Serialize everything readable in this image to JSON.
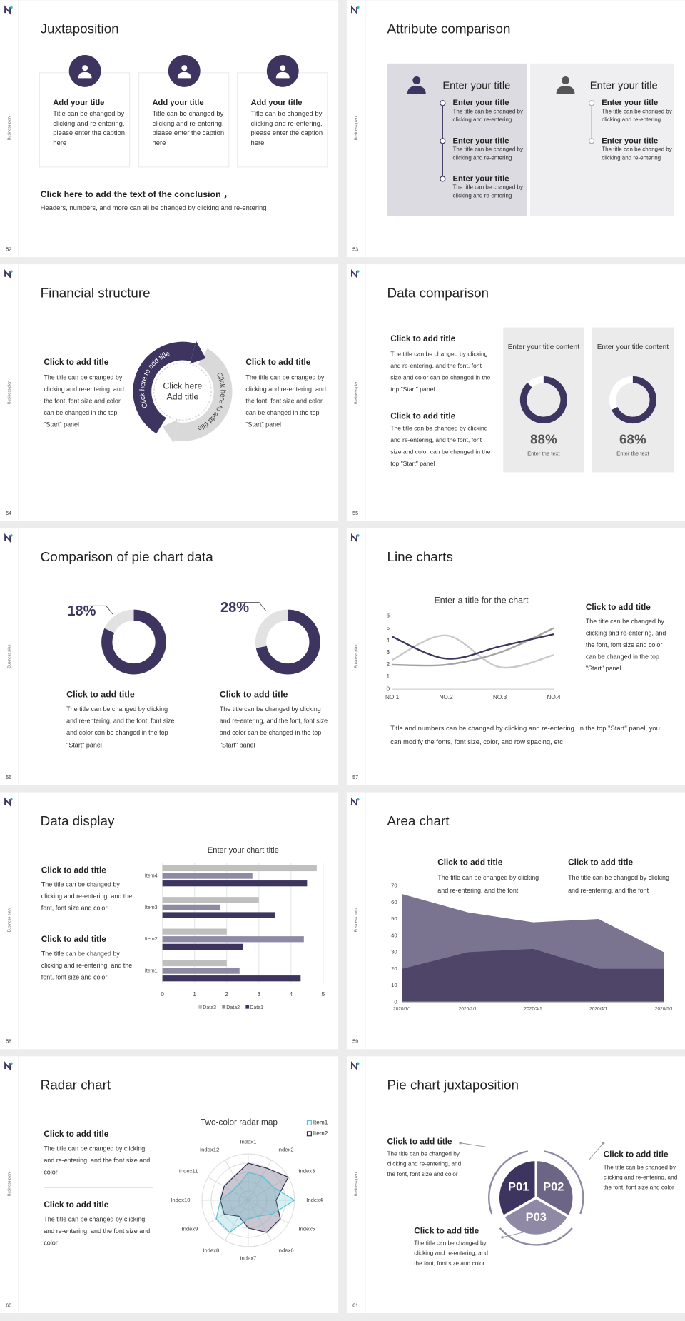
{
  "slides": [
    {
      "page": "52",
      "side_label": "Business plan",
      "title": "Juxtaposition",
      "cards": [
        {
          "title": "Add your title",
          "text": "Title can be changed by clicking and re-entering, please enter the caption here"
        },
        {
          "title": "Add your title",
          "text": "Title can be changed by clicking and re-entering, please enter the caption here"
        },
        {
          "title": "Add your title",
          "text": "Title can be changed by clicking and re-entering, please enter the caption here"
        }
      ],
      "conclusion": {
        "title": "Click here to add the text of the conclusion ，",
        "text": "Headers, numbers, and more can all be changed by clicking and re-entering"
      }
    },
    {
      "page": "53",
      "side_label": "Business plan",
      "title": "Attribute comparison",
      "panels": [
        {
          "title": "Enter your title",
          "items": [
            {
              "title": "Enter your title",
              "text": "The title can be changed by clicking and re-entering"
            },
            {
              "title": "Enter your title",
              "text": "The title can be changed by clicking and re-entering"
            },
            {
              "title": "Enter your title",
              "text": "The title can be changed by clicking and re-entering"
            }
          ]
        },
        {
          "title": "Enter your title",
          "items": [
            {
              "title": "Enter your title",
              "text": "The title can be changed by clicking and re-entering"
            },
            {
              "title": "Enter your title",
              "text": "The title can be changed by clicking and re-entering"
            }
          ]
        }
      ]
    },
    {
      "page": "54",
      "side_label": "Business plan",
      "title": "Financial structure",
      "texts": [
        {
          "title": "Click to add title",
          "text": "The title can be changed by clicking and re-entering, and the font, font size and color can be changed in the top \"Start\" panel"
        },
        {
          "title": "Click to add title",
          "text": "The title can be changed by clicking and re-entering, and the font, font size and color can be changed in the top \"Start\" panel"
        }
      ],
      "cycle": {
        "arc_left": "Click here to add title",
        "arc_right": "Click here to add title",
        "center": [
          "Click here",
          "Add title"
        ]
      }
    },
    {
      "page": "55",
      "side_label": "Business plan",
      "title": "Data comparison",
      "texts": [
        {
          "title": "Click to add title",
          "text": "The title can be changed by clicking and re-entering, and the font, font size and color can be changed in the top \"Start\" panel"
        },
        {
          "title": "Click to add title",
          "text": "The title can be changed by clicking and re-entering, and the font, font size and color can be changed in the top \"Start\" panel"
        }
      ],
      "cards": [
        {
          "title": "Enter your title content",
          "value": 88,
          "value_label": "88%",
          "caption": "Enter the text"
        },
        {
          "title": "Enter your title content",
          "value": 68,
          "value_label": "68%",
          "caption": "Enter the text"
        }
      ]
    },
    {
      "page": "56",
      "side_label": "Business plan",
      "title": "Comparison of pie chart data",
      "donuts": [
        {
          "value": 18,
          "value_label": "18%",
          "title": "Click to add title",
          "text": "The title can be changed by clicking and re-entering, and the font, font size and color can be changed in the top \"Start\" panel"
        },
        {
          "value": 28,
          "value_label": "28%",
          "title": "Click to add title",
          "text": "The title can be changed by clicking and re-entering, and the font, font size and color can be changed in the top \"Start\" panel"
        }
      ]
    },
    {
      "page": "57",
      "side_label": "Business plan",
      "title": "Line charts",
      "chart": {
        "type": "line",
        "title": "Enter a title for the chart",
        "categories": [
          "NO.1",
          "NO.2",
          "NO.3",
          "NO.4"
        ],
        "series": [
          {
            "color": "#3d3560",
            "values": [
              4.3,
              2.5,
              3.5,
              4.5
            ]
          },
          {
            "color": "#c9c9c9",
            "values": [
              2.4,
              4.4,
              1.8,
              2.8
            ]
          },
          {
            "color": "#a3a3a3",
            "values": [
              2,
              2,
              3,
              5
            ]
          }
        ],
        "ylim": [
          0,
          6
        ],
        "yticks": [
          0,
          1,
          2,
          3,
          4,
          5,
          6
        ]
      },
      "side_text": {
        "title": "Click to add title",
        "text": "The title can be changed by clicking and re-entering, and the font, font size and color can be changed in the top \"Start\" panel"
      },
      "note": "Title and numbers can be changed by clicking and re-entering. In the top \"Start\" panel, you can modify the fonts, font size, color, and row spacing, etc"
    },
    {
      "page": "58",
      "side_label": "Business plan",
      "title": "Data display",
      "chart": {
        "type": "bar",
        "orientation": "horizontal",
        "title": "Enter your chart title",
        "categories": [
          "Item1",
          "Item2",
          "Item3",
          "Item4"
        ],
        "series": [
          {
            "name": "Data1",
            "color": "#3d3560",
            "values": [
              4.3,
              2.5,
              3.5,
              4.5
            ]
          },
          {
            "name": "Data2",
            "color": "#8f8aa3",
            "values": [
              2.4,
              4.4,
              1.8,
              2.8
            ]
          },
          {
            "name": "Data3",
            "color": "#bfbfbf",
            "values": [
              2,
              2,
              3,
              4.8
            ]
          }
        ],
        "xlim": [
          0,
          5
        ],
        "xticks": [
          0,
          1,
          2,
          3,
          4,
          5
        ],
        "grid": true
      },
      "texts": [
        {
          "title": "Click to add title",
          "text": "The title can be changed by clicking and re-entering, and the font, font size and color"
        },
        {
          "title": "Click to add title",
          "text": "The title can be changed by clicking and re-entering, and the font, font size and color"
        }
      ]
    },
    {
      "page": "59",
      "side_label": "Business plan",
      "title": "Area chart",
      "chart": {
        "type": "area",
        "categories": [
          "2020/1/1",
          "2020/2/1",
          "2020/3/1",
          "2020/4/1",
          "2020/5/1"
        ],
        "series": [
          {
            "color": "#7a7490",
            "values": [
              65,
              54,
              48,
              50,
              30
            ]
          },
          {
            "color": "#4e4568",
            "values": [
              20,
              30,
              32,
              20,
              20
            ]
          }
        ],
        "ylim": [
          0,
          70
        ],
        "yticks": [
          0,
          10,
          20,
          30,
          40,
          50,
          60,
          70
        ]
      },
      "texts": [
        {
          "title": "Click to add title",
          "text": "The title can be changed by clicking and re-entering, and the font"
        },
        {
          "title": "Click to add title",
          "text": "The title can be changed by clicking and re-entering, and the font"
        }
      ]
    },
    {
      "page": "60",
      "side_label": "Business plan",
      "title": "Radar chart",
      "chart": {
        "type": "radar",
        "title": "Two-color radar map",
        "categories": [
          "Index1",
          "Index2",
          "Index3",
          "Index4",
          "Index5",
          "Index6",
          "Index7",
          "Index8",
          "Index9",
          "Index10",
          "Index11",
          "Index12"
        ],
        "series": [
          {
            "name": "Item1",
            "color": "#5bc0d0",
            "values": [
              3,
              3,
              3,
              5,
              3,
              2,
              2,
              4,
              4,
              3,
              2,
              2
            ]
          },
          {
            "name": "Item2",
            "color": "#2e2a45",
            "values": [
              4,
              4,
              5,
              3,
              4,
              4,
              3,
              2,
              3,
              3,
              3,
              3
            ]
          }
        ],
        "rlim": [
          0,
          5
        ]
      },
      "texts": [
        {
          "title": "Click to add title",
          "text": "The title can be changed by clicking and re-entering, and the font size and color"
        },
        {
          "title": "Click to add title",
          "text": "The title can be changed by clicking and re-entering, and the font size and color"
        }
      ]
    },
    {
      "page": "61",
      "side_label": "Business plan",
      "title": "Pie chart juxtaposition",
      "segments": [
        "P01",
        "P02",
        "P03"
      ],
      "texts": [
        {
          "title": "Click to add title",
          "text": "The title can be changed by clicking and re-entering, and the font, font size and color"
        },
        {
          "title": "Click to add title",
          "text": "The title can be changed by clicking and re-entering, and the font, font size and color"
        },
        {
          "title": "Click to add title",
          "text": "The title can be changed by clicking and re-entering, and the font, font size and color"
        }
      ]
    }
  ]
}
